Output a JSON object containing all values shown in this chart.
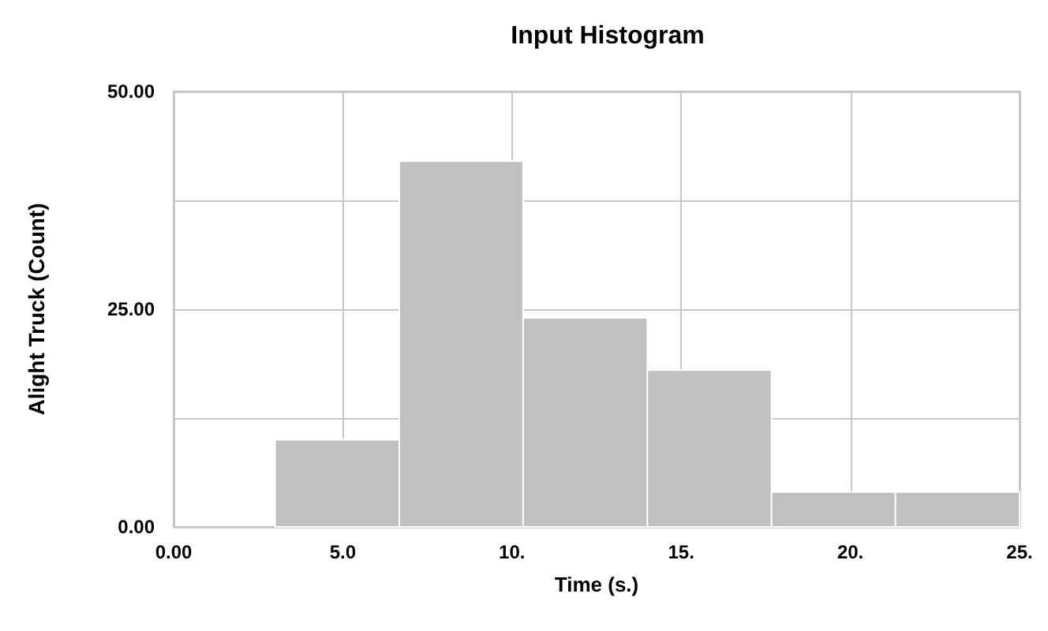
{
  "chart_data": {
    "type": "histogram",
    "title": "Input Histogram",
    "xlabel": "Time (s.)",
    "ylabel": "Alight Truck (Count)",
    "bins": [
      3.0,
      6.67,
      10.33,
      14.0,
      17.67,
      21.33,
      25.0
    ],
    "values": [
      10,
      42,
      24,
      18,
      4,
      4
    ],
    "color": "#c0c0c0",
    "xlim": [
      0,
      25
    ],
    "xticks": [
      {
        "value": 0,
        "label": "0.00"
      },
      {
        "value": 5,
        "label": "5.0"
      },
      {
        "value": 10,
        "label": "10."
      },
      {
        "value": 15,
        "label": "15."
      },
      {
        "value": 20,
        "label": "20."
      },
      {
        "value": 25,
        "label": "25."
      }
    ],
    "ylim": [
      0,
      50
    ],
    "yticks": [
      {
        "value": 0,
        "label": "0.00"
      },
      {
        "value": 12.5,
        "label": null
      },
      {
        "value": 25,
        "label": "25.00"
      },
      {
        "value": 37.5,
        "label": null
      },
      {
        "value": 50,
        "label": "50.00"
      }
    ],
    "grid": true
  }
}
